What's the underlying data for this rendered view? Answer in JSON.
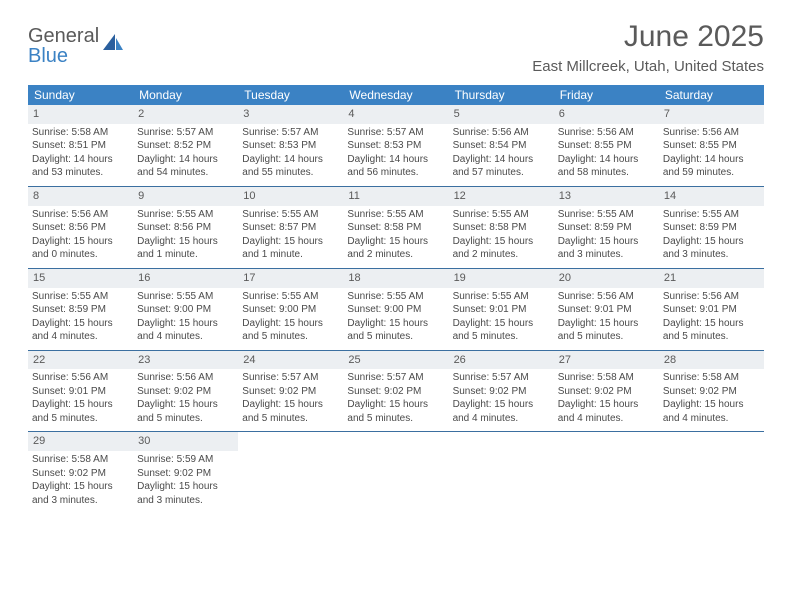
{
  "brand": {
    "top": "General",
    "bottom": "Blue"
  },
  "title": "June 2025",
  "location": "East Millcreek, Utah, United States",
  "colors": {
    "header_bg": "#3b82c4",
    "header_fg": "#ffffff",
    "row_sep": "#3b6fa0",
    "daynum_bg": "#eceff2",
    "text": "#4a4a4a",
    "title": "#5a5a5a"
  },
  "weekdays": [
    "Sunday",
    "Monday",
    "Tuesday",
    "Wednesday",
    "Thursday",
    "Friday",
    "Saturday"
  ],
  "start_offset": 0,
  "days_in_month": 30,
  "days": [
    {
      "n": 1,
      "sunrise": "5:58 AM",
      "sunset": "8:51 PM",
      "daylight": "14 hours and 53 minutes."
    },
    {
      "n": 2,
      "sunrise": "5:57 AM",
      "sunset": "8:52 PM",
      "daylight": "14 hours and 54 minutes."
    },
    {
      "n": 3,
      "sunrise": "5:57 AM",
      "sunset": "8:53 PM",
      "daylight": "14 hours and 55 minutes."
    },
    {
      "n": 4,
      "sunrise": "5:57 AM",
      "sunset": "8:53 PM",
      "daylight": "14 hours and 56 minutes."
    },
    {
      "n": 5,
      "sunrise": "5:56 AM",
      "sunset": "8:54 PM",
      "daylight": "14 hours and 57 minutes."
    },
    {
      "n": 6,
      "sunrise": "5:56 AM",
      "sunset": "8:55 PM",
      "daylight": "14 hours and 58 minutes."
    },
    {
      "n": 7,
      "sunrise": "5:56 AM",
      "sunset": "8:55 PM",
      "daylight": "14 hours and 59 minutes."
    },
    {
      "n": 8,
      "sunrise": "5:56 AM",
      "sunset": "8:56 PM",
      "daylight": "15 hours and 0 minutes."
    },
    {
      "n": 9,
      "sunrise": "5:55 AM",
      "sunset": "8:56 PM",
      "daylight": "15 hours and 1 minute."
    },
    {
      "n": 10,
      "sunrise": "5:55 AM",
      "sunset": "8:57 PM",
      "daylight": "15 hours and 1 minute."
    },
    {
      "n": 11,
      "sunrise": "5:55 AM",
      "sunset": "8:58 PM",
      "daylight": "15 hours and 2 minutes."
    },
    {
      "n": 12,
      "sunrise": "5:55 AM",
      "sunset": "8:58 PM",
      "daylight": "15 hours and 2 minutes."
    },
    {
      "n": 13,
      "sunrise": "5:55 AM",
      "sunset": "8:59 PM",
      "daylight": "15 hours and 3 minutes."
    },
    {
      "n": 14,
      "sunrise": "5:55 AM",
      "sunset": "8:59 PM",
      "daylight": "15 hours and 3 minutes."
    },
    {
      "n": 15,
      "sunrise": "5:55 AM",
      "sunset": "8:59 PM",
      "daylight": "15 hours and 4 minutes."
    },
    {
      "n": 16,
      "sunrise": "5:55 AM",
      "sunset": "9:00 PM",
      "daylight": "15 hours and 4 minutes."
    },
    {
      "n": 17,
      "sunrise": "5:55 AM",
      "sunset": "9:00 PM",
      "daylight": "15 hours and 5 minutes."
    },
    {
      "n": 18,
      "sunrise": "5:55 AM",
      "sunset": "9:00 PM",
      "daylight": "15 hours and 5 minutes."
    },
    {
      "n": 19,
      "sunrise": "5:55 AM",
      "sunset": "9:01 PM",
      "daylight": "15 hours and 5 minutes."
    },
    {
      "n": 20,
      "sunrise": "5:56 AM",
      "sunset": "9:01 PM",
      "daylight": "15 hours and 5 minutes."
    },
    {
      "n": 21,
      "sunrise": "5:56 AM",
      "sunset": "9:01 PM",
      "daylight": "15 hours and 5 minutes."
    },
    {
      "n": 22,
      "sunrise": "5:56 AM",
      "sunset": "9:01 PM",
      "daylight": "15 hours and 5 minutes."
    },
    {
      "n": 23,
      "sunrise": "5:56 AM",
      "sunset": "9:02 PM",
      "daylight": "15 hours and 5 minutes."
    },
    {
      "n": 24,
      "sunrise": "5:57 AM",
      "sunset": "9:02 PM",
      "daylight": "15 hours and 5 minutes."
    },
    {
      "n": 25,
      "sunrise": "5:57 AM",
      "sunset": "9:02 PM",
      "daylight": "15 hours and 5 minutes."
    },
    {
      "n": 26,
      "sunrise": "5:57 AM",
      "sunset": "9:02 PM",
      "daylight": "15 hours and 4 minutes."
    },
    {
      "n": 27,
      "sunrise": "5:58 AM",
      "sunset": "9:02 PM",
      "daylight": "15 hours and 4 minutes."
    },
    {
      "n": 28,
      "sunrise": "5:58 AM",
      "sunset": "9:02 PM",
      "daylight": "15 hours and 4 minutes."
    },
    {
      "n": 29,
      "sunrise": "5:58 AM",
      "sunset": "9:02 PM",
      "daylight": "15 hours and 3 minutes."
    },
    {
      "n": 30,
      "sunrise": "5:59 AM",
      "sunset": "9:02 PM",
      "daylight": "15 hours and 3 minutes."
    }
  ],
  "labels": {
    "sunrise": "Sunrise:",
    "sunset": "Sunset:",
    "daylight": "Daylight:"
  }
}
